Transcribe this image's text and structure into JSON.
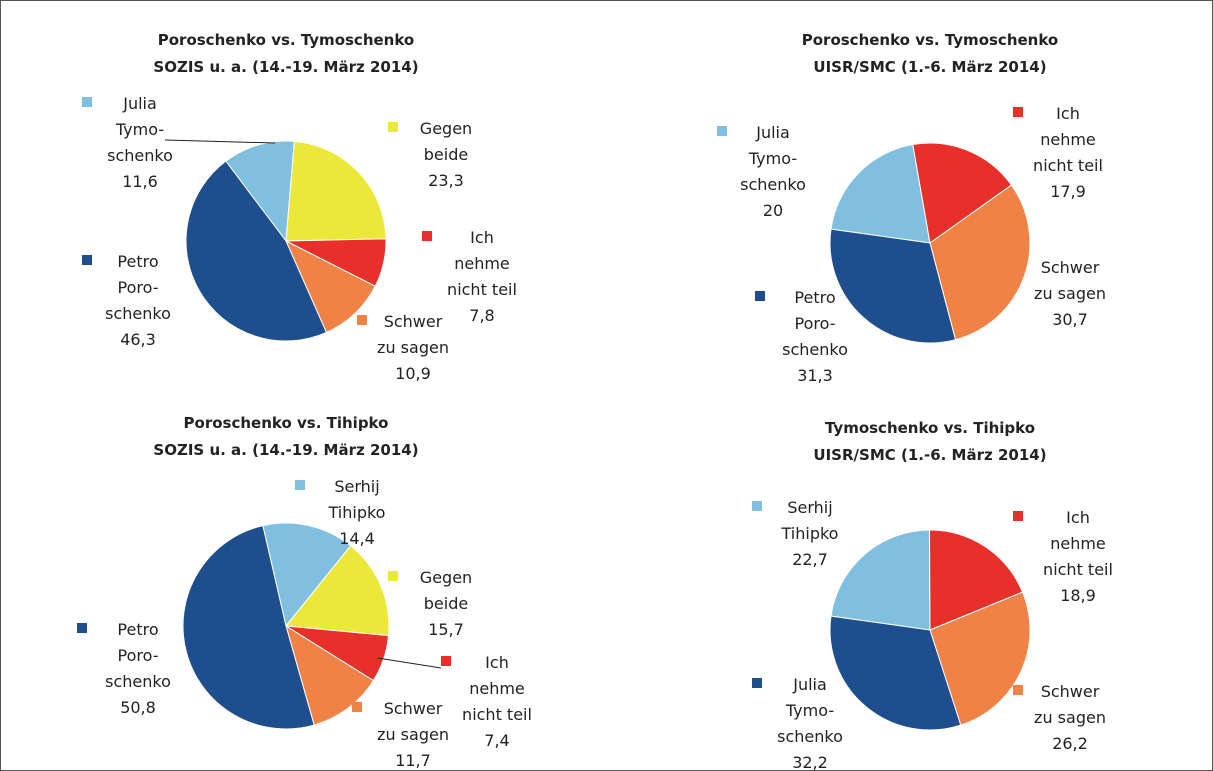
{
  "chart_data": [
    {
      "type": "pie",
      "title": "Poroschenko vs. Tymoschenko",
      "subtitle": "SOZIS u. a. (14.-19. März 2014)",
      "categories": [
        "Julia\nTymo-\nschenko",
        "Gegen\nbeide",
        "Ich\nnehme\nnicht teil",
        "Schwer\nzu sagen",
        "Petro\nPoro-\nschenko"
      ],
      "values": [
        11.6,
        23.3,
        7.8,
        10.9,
        46.3
      ],
      "value_labels": [
        "11,6",
        "23,3",
        "7,8",
        "10,9",
        "46,3"
      ],
      "colors": [
        "#80bfdf",
        "#ebe83a",
        "#e8302a",
        "#f08245",
        "#1f4e8f"
      ]
    },
    {
      "type": "pie",
      "title": "Poroschenko vs. Tymoschenko",
      "subtitle": "UISR/SMC (1.-6. März 2014)",
      "categories": [
        "Julia\nTymo-\nschenko",
        "Ich\nnehme\nnicht teil",
        "Schwer\nzu sagen",
        "Petro\nPoro-\nschenko"
      ],
      "values": [
        20,
        17.9,
        30.7,
        31.3
      ],
      "value_labels": [
        "20",
        "17,9",
        "30,7",
        "31,3"
      ],
      "colors": [
        "#80bfdf",
        "#e8302a",
        "#f08245",
        "#1f4e8f"
      ]
    },
    {
      "type": "pie",
      "title": "Poroschenko vs. Tihipko",
      "subtitle": "SOZIS u. a. (14.-19. März 2014)",
      "categories": [
        "Serhij\nTihipko",
        "Gegen\nbeide",
        "Ich\nnehme\nnicht teil",
        "Schwer\nzu sagen",
        "Petro\nPoro-\nschenko"
      ],
      "values": [
        14.4,
        15.7,
        7.4,
        11.7,
        50.8
      ],
      "value_labels": [
        "14,4",
        "15,7",
        "7,4",
        "11,7",
        "50,8"
      ],
      "colors": [
        "#80bfdf",
        "#ebe83a",
        "#e8302a",
        "#f08245",
        "#1f4e8f"
      ]
    },
    {
      "type": "pie",
      "title": "Tymoschenko vs. Tihipko",
      "subtitle": "UISR/SMC (1.-6. März 2014)",
      "categories": [
        "Serhij\nTihipko",
        "Ich\nnehme\nnicht teil",
        "Schwer\nzu sagen",
        "Julia\nTymo-\nschenko"
      ],
      "values": [
        22.7,
        18.9,
        26.2,
        32.2
      ],
      "value_labels": [
        "22,7",
        "18,9",
        "26,2",
        "32,2"
      ],
      "colors": [
        "#80bfdf",
        "#e8302a",
        "#f08245",
        "#1f4e8f"
      ]
    }
  ]
}
